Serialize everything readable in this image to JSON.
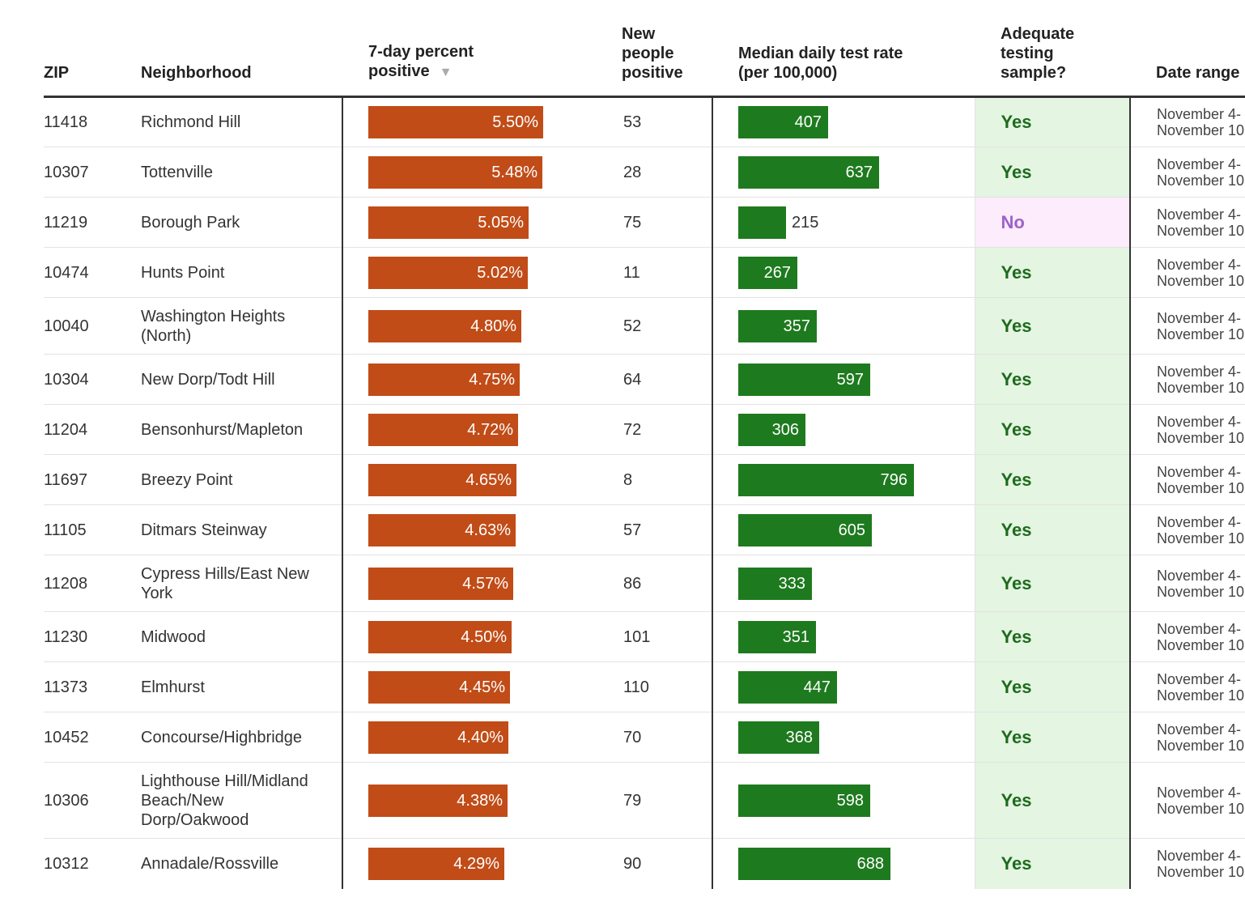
{
  "chart_data": {
    "type": "table",
    "columns": {
      "zip": "ZIP",
      "neighborhood": "Neighborhood",
      "pct_positive": [
        "7-day percent",
        "positive"
      ],
      "new_positive": [
        "New",
        "people",
        "positive"
      ],
      "test_rate": [
        "Median daily test rate",
        "(per 100,000)"
      ],
      "adequate": [
        "Adequate",
        "testing",
        "sample?"
      ],
      "date_range": "Date range"
    },
    "sort_indicator": "▼",
    "pct_axis_max": 5.5,
    "rate_axis_max": 1100,
    "colors": {
      "pct_bar": "#c14c17",
      "rate_bar": "#1e7a1e",
      "yes_bg": "#e4f5e1",
      "no_bg": "#fcecfc"
    },
    "rows": [
      {
        "zip": "11418",
        "neighborhood": "Richmond Hill",
        "pct": 5.5,
        "pct_label": "5.50%",
        "new": "53",
        "rate": 407,
        "rate_label": "407",
        "adequate": "Yes",
        "date_start": "November 4-",
        "date_end": "November 10"
      },
      {
        "zip": "10307",
        "neighborhood": "Tottenville",
        "pct": 5.48,
        "pct_label": "5.48%",
        "new": "28",
        "rate": 637,
        "rate_label": "637",
        "adequate": "Yes",
        "date_start": "November 4-",
        "date_end": "November 10"
      },
      {
        "zip": "11219",
        "neighborhood": "Borough Park",
        "pct": 5.05,
        "pct_label": "5.05%",
        "new": "75",
        "rate": 215,
        "rate_label": "215",
        "adequate": "No",
        "date_start": "November 4-",
        "date_end": "November 10"
      },
      {
        "zip": "10474",
        "neighborhood": "Hunts Point",
        "pct": 5.02,
        "pct_label": "5.02%",
        "new": "11",
        "rate": 267,
        "rate_label": "267",
        "adequate": "Yes",
        "date_start": "November 4-",
        "date_end": "November 10"
      },
      {
        "zip": "10040",
        "neighborhood": "Washington Heights (North)",
        "pct": 4.8,
        "pct_label": "4.80%",
        "new": "52",
        "rate": 357,
        "rate_label": "357",
        "adequate": "Yes",
        "date_start": "November 4-",
        "date_end": "November 10"
      },
      {
        "zip": "10304",
        "neighborhood": "New Dorp/Todt Hill",
        "pct": 4.75,
        "pct_label": "4.75%",
        "new": "64",
        "rate": 597,
        "rate_label": "597",
        "adequate": "Yes",
        "date_start": "November 4-",
        "date_end": "November 10"
      },
      {
        "zip": "11204",
        "neighborhood": "Bensonhurst/Mapleton",
        "pct": 4.72,
        "pct_label": "4.72%",
        "new": "72",
        "rate": 306,
        "rate_label": "306",
        "adequate": "Yes",
        "date_start": "November 4-",
        "date_end": "November 10"
      },
      {
        "zip": "11697",
        "neighborhood": "Breezy Point",
        "pct": 4.65,
        "pct_label": "4.65%",
        "new": "8",
        "rate": 796,
        "rate_label": "796",
        "adequate": "Yes",
        "date_start": "November 4-",
        "date_end": "November 10"
      },
      {
        "zip": "11105",
        "neighborhood": "Ditmars Steinway",
        "pct": 4.63,
        "pct_label": "4.63%",
        "new": "57",
        "rate": 605,
        "rate_label": "605",
        "adequate": "Yes",
        "date_start": "November 4-",
        "date_end": "November 10"
      },
      {
        "zip": "11208",
        "neighborhood": "Cypress Hills/East New York",
        "pct": 4.57,
        "pct_label": "4.57%",
        "new": "86",
        "rate": 333,
        "rate_label": "333",
        "adequate": "Yes",
        "date_start": "November 4-",
        "date_end": "November 10"
      },
      {
        "zip": "11230",
        "neighborhood": "Midwood",
        "pct": 4.5,
        "pct_label": "4.50%",
        "new": "101",
        "rate": 351,
        "rate_label": "351",
        "adequate": "Yes",
        "date_start": "November 4-",
        "date_end": "November 10"
      },
      {
        "zip": "11373",
        "neighborhood": "Elmhurst",
        "pct": 4.45,
        "pct_label": "4.45%",
        "new": "110",
        "rate": 447,
        "rate_label": "447",
        "adequate": "Yes",
        "date_start": "November 4-",
        "date_end": "November 10"
      },
      {
        "zip": "10452",
        "neighborhood": "Concourse/Highbridge",
        "pct": 4.4,
        "pct_label": "4.40%",
        "new": "70",
        "rate": 368,
        "rate_label": "368",
        "adequate": "Yes",
        "date_start": "November 4-",
        "date_end": "November 10"
      },
      {
        "zip": "10306",
        "neighborhood": "Lighthouse Hill/Midland Beach/New Dorp/Oakwood",
        "pct": 4.38,
        "pct_label": "4.38%",
        "new": "79",
        "rate": 598,
        "rate_label": "598",
        "adequate": "Yes",
        "date_start": "November 4-",
        "date_end": "November 10"
      },
      {
        "zip": "10312",
        "neighborhood": "Annadale/Rossville",
        "pct": 4.29,
        "pct_label": "4.29%",
        "new": "90",
        "rate": 688,
        "rate_label": "688",
        "adequate": "Yes",
        "date_start": "November 4-",
        "date_end": "November 10"
      }
    ]
  }
}
